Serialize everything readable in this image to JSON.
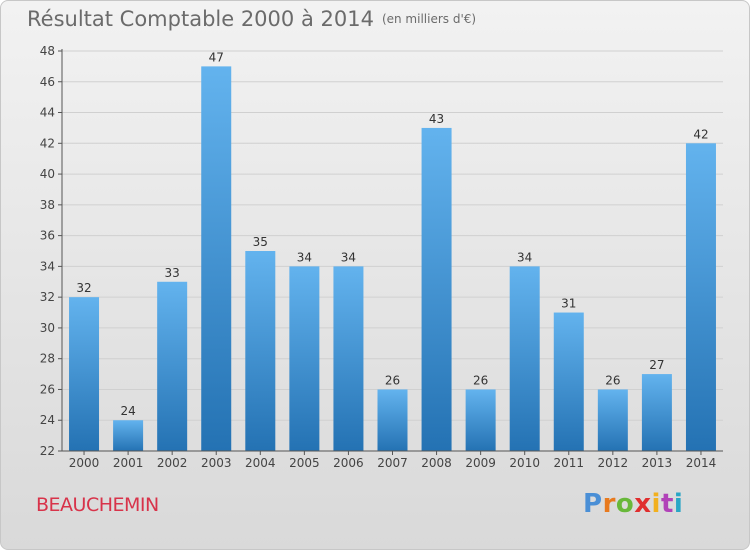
{
  "title": "Résultat Comptable 2000 à 2014",
  "subtitle": "(en milliers d'€)",
  "commune": "BEAUCHEMIN",
  "logo": {
    "text": "Proxiti",
    "colors": [
      "#4a8fd6",
      "#e87a1e",
      "#68b83a",
      "#e02e2e",
      "#f2b01e",
      "#b142b8",
      "#2aa6c6"
    ]
  },
  "colors": {
    "bar_top": "#63b3ee",
    "bar_bottom": "#2472b3",
    "grid": "#d0d0d0",
    "axis": "#555555",
    "commune": "#d8334a"
  },
  "chart_data": {
    "type": "bar",
    "title": "Résultat Comptable 2000 à 2014",
    "ylabel": "(en milliers d'€)",
    "xlabel": "",
    "categories": [
      "2000",
      "2001",
      "2002",
      "2003",
      "2004",
      "2005",
      "2006",
      "2007",
      "2008",
      "2009",
      "2010",
      "2011",
      "2012",
      "2013",
      "2014"
    ],
    "values": [
      32,
      24,
      33,
      47,
      35,
      34,
      34,
      26,
      43,
      26,
      34,
      31,
      26,
      27,
      42
    ],
    "ylim": [
      22,
      48
    ],
    "yticks": [
      22,
      24,
      26,
      28,
      30,
      32,
      34,
      36,
      38,
      40,
      42,
      44,
      46,
      48
    ],
    "grid": true
  }
}
